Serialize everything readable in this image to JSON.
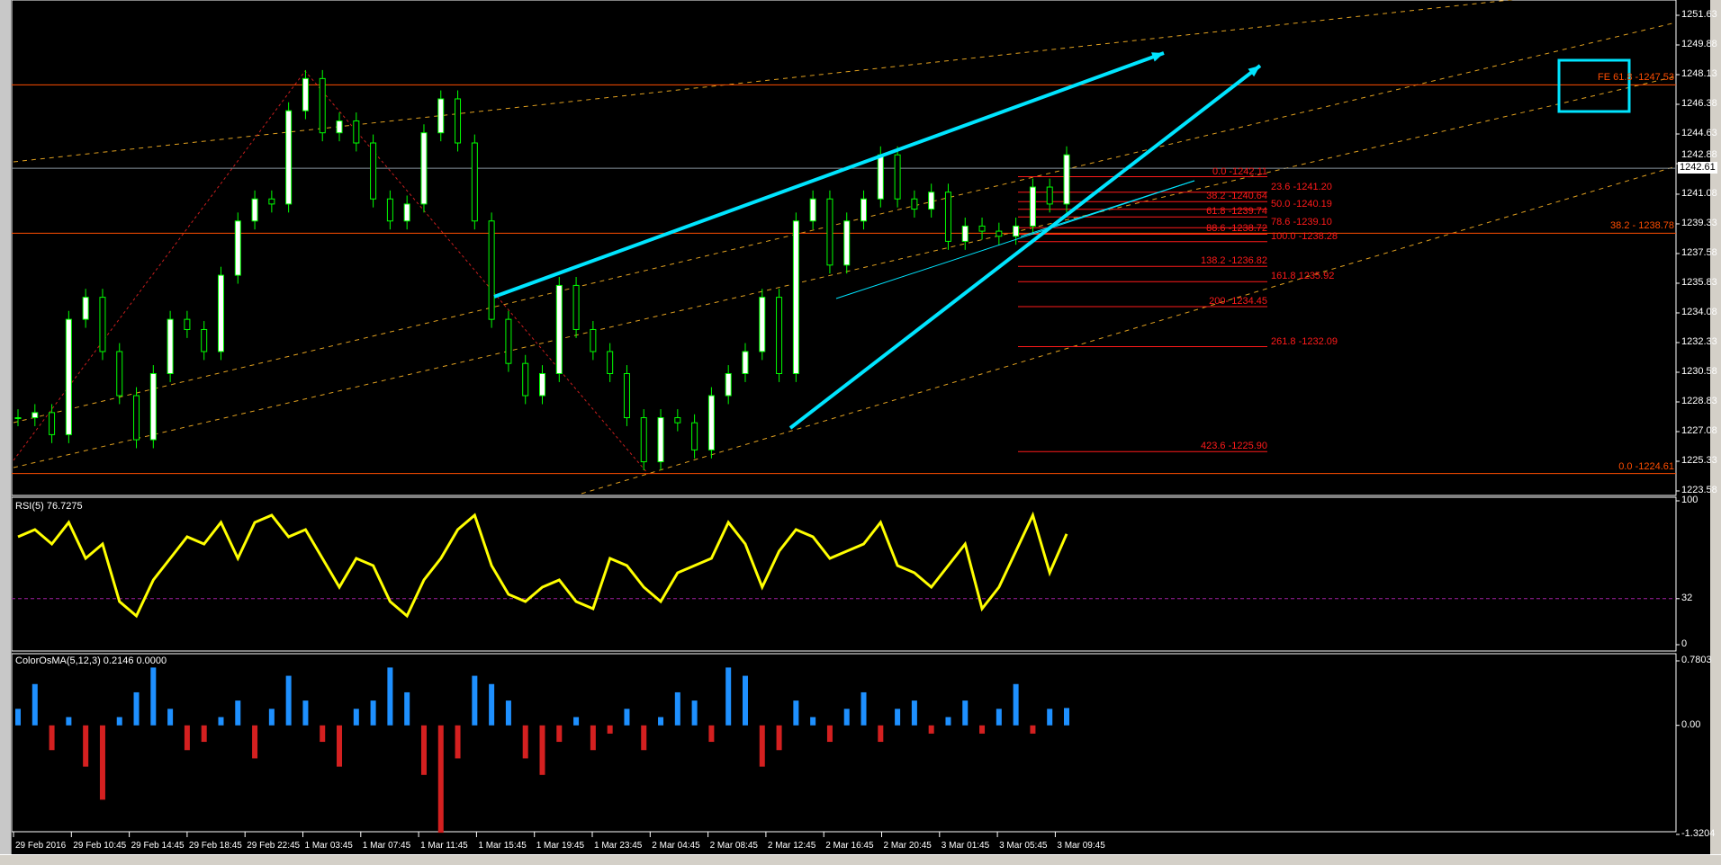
{
  "colors": {
    "background": "#000000",
    "candle": "#00ff00",
    "rsi": "#ffff00",
    "osma_up": "#1e90ff",
    "osma_down": "#d42020",
    "fib": "#ff1a1a",
    "hline": "#ff4d00",
    "channel": "#e0a020",
    "trend": "#00e5ff",
    "zigzag": "#c81e1e",
    "grid": "#ffffff"
  },
  "main": {
    "price_axis": [
      "1251.63",
      "1249.88",
      "1248.13",
      "1246.38",
      "1244.63",
      "1242.88",
      "1241.08",
      "1239.33",
      "1237.58",
      "1235.83",
      "1234.08",
      "1232.33",
      "1230.58",
      "1228.83",
      "1227.08",
      "1225.33",
      "1223.58"
    ],
    "current_price": "1242.61",
    "current_price_value": 1242.61,
    "hlines": [
      {
        "price": 1247.53,
        "label": "FE 61.8 -1247.53"
      },
      {
        "price": 1238.78,
        "label": "38.2 - 1238.78"
      },
      {
        "price": 1224.61,
        "label": "0.0 -1224.61"
      }
    ],
    "fib_levels": [
      {
        "price": 1242.11,
        "label": "0.0 -1242.11"
      },
      {
        "price": 1241.2,
        "label": "23.6 -1241.20"
      },
      {
        "price": 1240.64,
        "label": "38.2 -1240.64"
      },
      {
        "price": 1240.19,
        "label": "50.0 -1240.19"
      },
      {
        "price": 1239.74,
        "label": "61.8 -1239.74"
      },
      {
        "price": 1239.1,
        "label": "78.6 -1239.10"
      },
      {
        "price": 1238.72,
        "label": "88.6 -1238.72"
      },
      {
        "price": 1238.28,
        "label": "100.0 -1238.28"
      },
      {
        "price": 1236.82,
        "label": "138.2  -1236.82"
      },
      {
        "price": 1235.92,
        "label": "161.8 1235.92"
      },
      {
        "price": 1234.45,
        "label": "200- 1234.45"
      },
      {
        "price": 1232.09,
        "label": "261.8 -1232.09"
      },
      {
        "price": 1225.9,
        "label": "423.6 -1225.90"
      }
    ],
    "closes": [
      1227.9,
      1228.2,
      1226.9,
      1233.7,
      1235.0,
      1231.8,
      1229.2,
      1226.6,
      1230.5,
      1233.7,
      1233.1,
      1231.8,
      1236.3,
      1239.5,
      1240.8,
      1240.5,
      1246.0,
      1247.9,
      1244.7,
      1245.4,
      1244.1,
      1240.8,
      1239.5,
      1240.5,
      1244.7,
      1246.7,
      1244.1,
      1239.5,
      1233.7,
      1231.1,
      1229.2,
      1230.5,
      1235.7,
      1233.1,
      1231.8,
      1230.5,
      1227.9,
      1225.3,
      1227.9,
      1227.6,
      1226.0,
      1229.2,
      1230.5,
      1231.8,
      1235.0,
      1230.5,
      1239.5,
      1240.8,
      1236.9,
      1239.5,
      1240.8,
      1243.4,
      1240.8,
      1240.2,
      1241.2,
      1238.3,
      1239.2,
      1238.9,
      1238.6,
      1239.2,
      1241.5,
      1240.5,
      1243.4
    ]
  },
  "rsi": {
    "label": "RSI(5) 76.7275",
    "axis": [
      "100",
      "32",
      "0"
    ],
    "level": 32,
    "values": [
      75,
      80,
      70,
      85,
      60,
      70,
      30,
      20,
      45,
      60,
      75,
      70,
      85,
      60,
      85,
      90,
      75,
      80,
      60,
      40,
      60,
      55,
      30,
      20,
      45,
      60,
      80,
      90,
      55,
      35,
      30,
      40,
      45,
      30,
      25,
      60,
      55,
      40,
      30,
      50,
      55,
      60,
      85,
      70,
      40,
      65,
      80,
      75,
      60,
      65,
      70,
      85,
      55,
      50,
      40,
      55,
      70,
      25,
      40,
      65,
      90,
      50,
      77
    ]
  },
  "osma": {
    "label": "ColorOsMA(5,12,3) 0.2146 0.0000",
    "axis": [
      "0.7803",
      "0.00",
      "-1.3204"
    ],
    "range": [
      -1.3204,
      0.7803
    ],
    "values": [
      0.2,
      0.5,
      -0.3,
      0.1,
      -0.5,
      -0.9,
      0.1,
      0.4,
      0.7,
      0.2,
      -0.3,
      -0.2,
      0.1,
      0.3,
      -0.4,
      0.2,
      0.6,
      0.3,
      -0.2,
      -0.5,
      0.2,
      0.3,
      0.7,
      0.4,
      -0.6,
      -1.3,
      -0.4,
      0.6,
      0.5,
      0.3,
      -0.4,
      -0.6,
      -0.2,
      0.1,
      -0.3,
      -0.1,
      0.2,
      -0.3,
      0.1,
      0.4,
      0.3,
      -0.2,
      0.7,
      0.6,
      -0.5,
      -0.3,
      0.3,
      0.1,
      -0.2,
      0.2,
      0.4,
      -0.2,
      0.2,
      0.3,
      -0.1,
      0.1,
      0.3,
      -0.1,
      0.2,
      0.5,
      -0.1,
      0.2,
      0.21
    ]
  },
  "time_axis": [
    "29 Feb 2016",
    "29 Feb 10:45",
    "29 Feb 14:45",
    "29 Feb 18:45",
    "29 Feb 22:45",
    "1 Mar 03:45",
    "1 Mar 07:45",
    "1 Mar 11:45",
    "1 Mar 15:45",
    "1 Mar 19:45",
    "1 Mar 23:45",
    "2 Mar 04:45",
    "2 Mar 08:45",
    "2 Mar 12:45",
    "2 Mar 16:45",
    "2 Mar 20:45",
    "3 Mar 01:45",
    "3 Mar 05:45",
    "3 Mar 09:45"
  ]
}
